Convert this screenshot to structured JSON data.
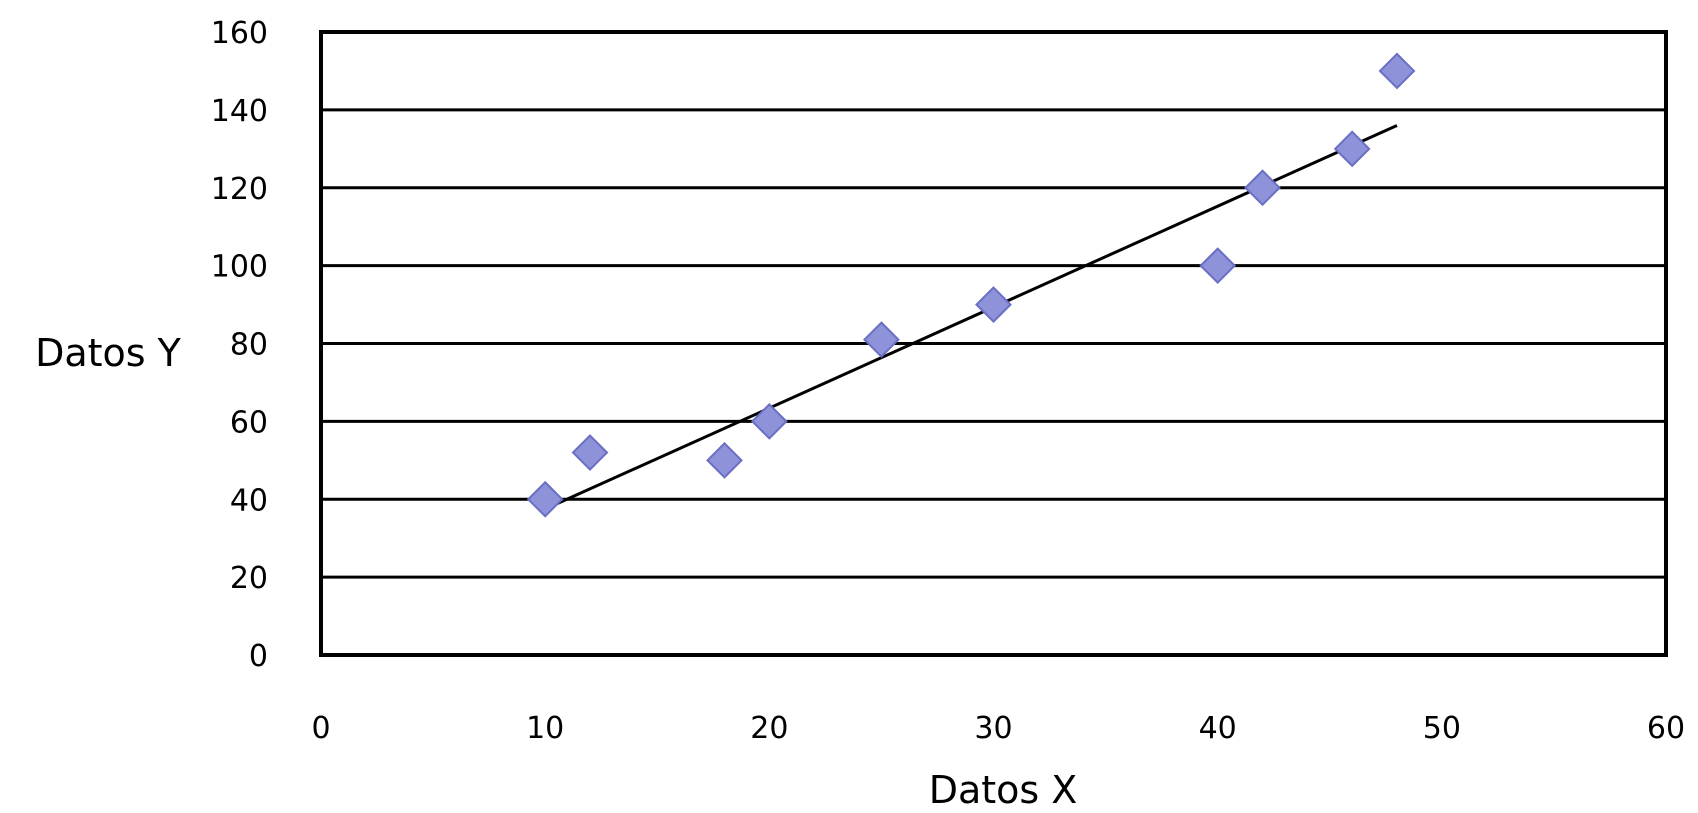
{
  "chart_data": {
    "type": "scatter",
    "title": "",
    "xlabel": "Datos X",
    "ylabel": "Datos Y",
    "xlim": [
      0,
      60
    ],
    "ylim": [
      0,
      160
    ],
    "xticks": [
      0,
      10,
      20,
      30,
      40,
      50,
      60
    ],
    "yticks": [
      0,
      20,
      40,
      60,
      80,
      100,
      120,
      140,
      160
    ],
    "grid": {
      "horizontal": true,
      "vertical": false
    },
    "legend": "none",
    "series": [
      {
        "marker": "diamond",
        "color": "#8e92d8",
        "x": [
          10,
          12,
          18,
          20,
          25,
          30,
          40,
          42,
          46,
          48
        ],
        "y": [
          40,
          52,
          50,
          60,
          81,
          90,
          100,
          120,
          130,
          150
        ]
      }
    ],
    "trendline": {
      "color": "#000000",
      "x": [
        10.2,
        48
      ],
      "y": [
        38,
        136
      ]
    }
  }
}
